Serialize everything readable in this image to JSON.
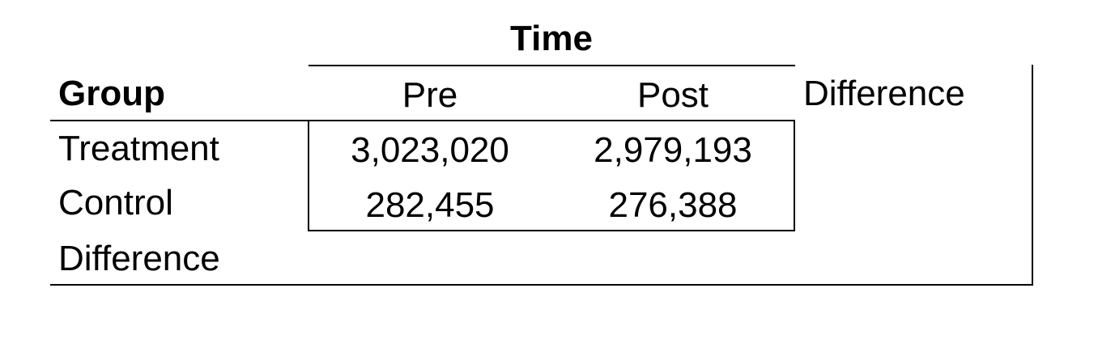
{
  "table": {
    "super_header": "Time",
    "group_header": "Group",
    "columns": [
      "Pre",
      "Post",
      "Difference"
    ],
    "rows": [
      {
        "label": "Treatment",
        "values": [
          "3,023,020",
          "2,979,193",
          ""
        ]
      },
      {
        "label": "Control",
        "values": [
          "282,455",
          "276,388",
          ""
        ]
      },
      {
        "label": "Difference",
        "values": [
          "",
          "",
          ""
        ]
      }
    ]
  }
}
